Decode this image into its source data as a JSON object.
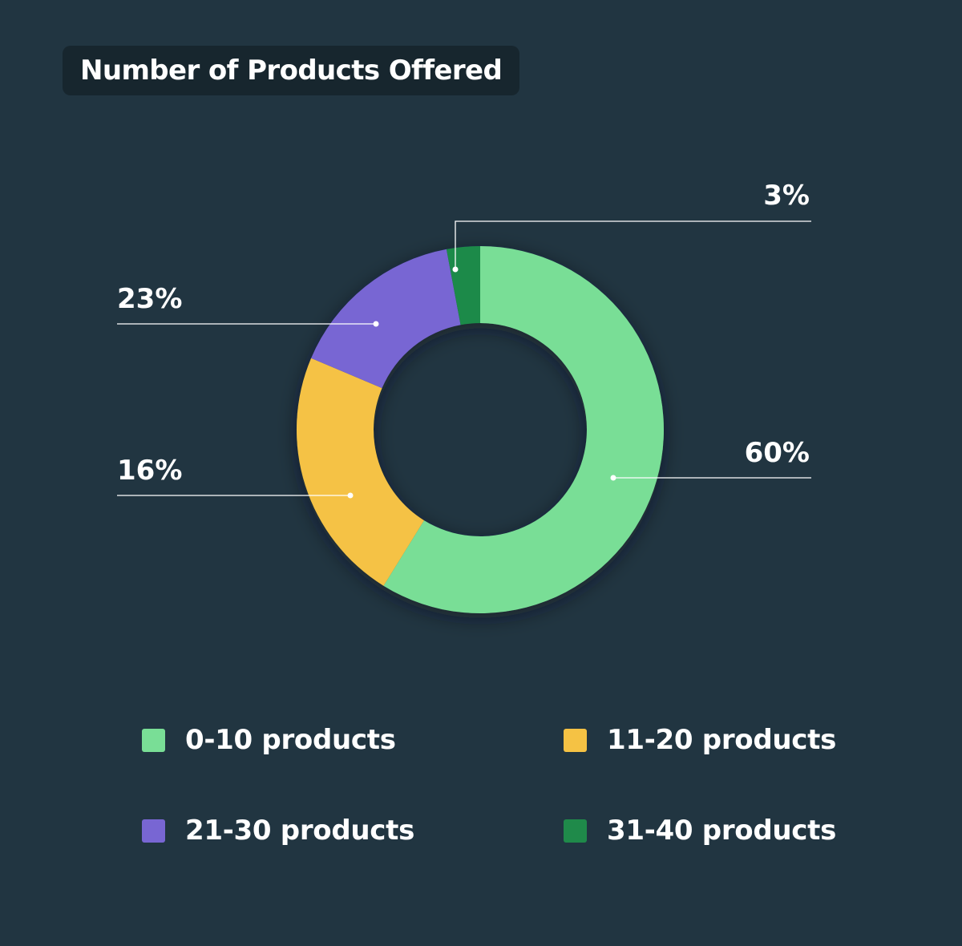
{
  "chart_data": {
    "type": "pie",
    "variant": "donut",
    "title": "Number of Products Offered",
    "categories": [
      "0-10 products",
      "11-20 products",
      "21-30 products",
      "31-40 products"
    ],
    "values": [
      60,
      23,
      16,
      3
    ],
    "value_labels": [
      "60%",
      "23%",
      "16%",
      "3%"
    ],
    "colors": [
      "#79de96",
      "#f5c244",
      "#7866d3",
      "#1f8a4a"
    ],
    "legend_placement": "bottom"
  },
  "style": {
    "background": "#213541",
    "title_background": "#17262e",
    "leader_line": "#ffffff"
  }
}
